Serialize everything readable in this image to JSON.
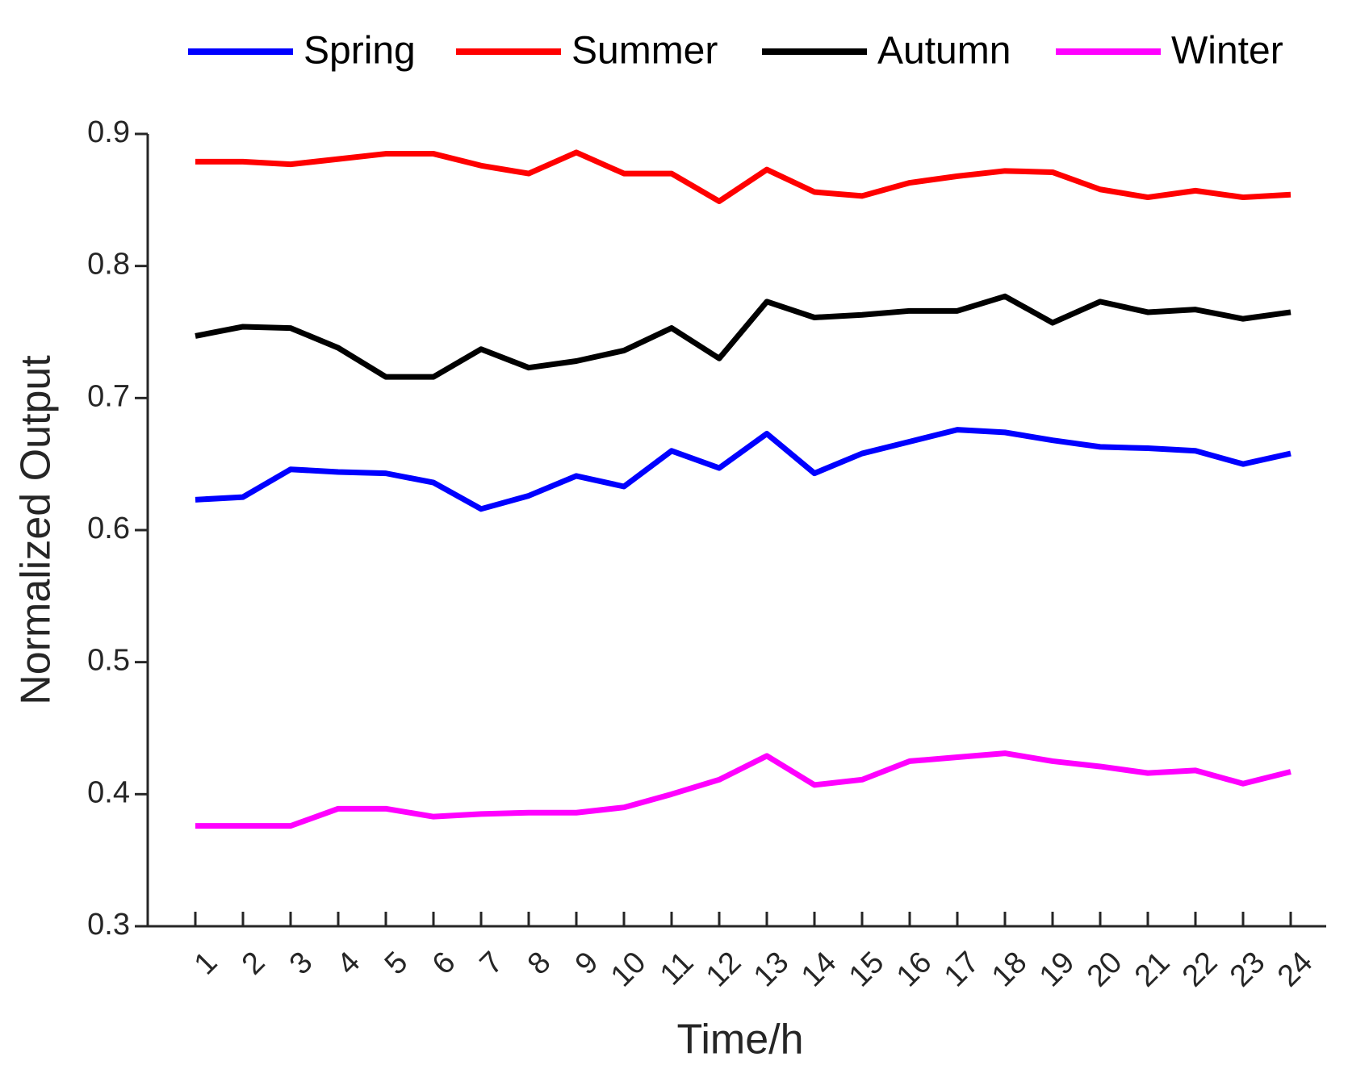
{
  "chart_data": {
    "type": "line",
    "x_label": "Time/h",
    "y_label": "Normalized Output",
    "categories": [
      "1",
      "2",
      "3",
      "4",
      "5",
      "6",
      "7",
      "8",
      "9",
      "10",
      "11",
      "12",
      "13",
      "14",
      "15",
      "16",
      "17",
      "18",
      "19",
      "20",
      "21",
      "22",
      "23",
      "24"
    ],
    "series": [
      {
        "name": "Spring",
        "color": "#0000ff",
        "values": [
          0.623,
          0.625,
          0.646,
          0.644,
          0.643,
          0.636,
          0.616,
          0.626,
          0.641,
          0.633,
          0.66,
          0.647,
          0.673,
          0.643,
          0.658,
          0.667,
          0.676,
          0.674,
          0.668,
          0.663,
          0.662,
          0.66,
          0.65,
          0.658
        ]
      },
      {
        "name": "Summer",
        "color": "#ff0000",
        "values": [
          0.879,
          0.879,
          0.877,
          0.881,
          0.885,
          0.885,
          0.876,
          0.87,
          0.886,
          0.87,
          0.87,
          0.849,
          0.873,
          0.856,
          0.853,
          0.863,
          0.868,
          0.872,
          0.871,
          0.858,
          0.852,
          0.857,
          0.852,
          0.854
        ]
      },
      {
        "name": "Autumn",
        "color": "#000000",
        "values": [
          0.747,
          0.754,
          0.753,
          0.738,
          0.716,
          0.716,
          0.737,
          0.723,
          0.728,
          0.736,
          0.753,
          0.73,
          0.773,
          0.761,
          0.763,
          0.766,
          0.766,
          0.777,
          0.757,
          0.773,
          0.765,
          0.767,
          0.76,
          0.765
        ]
      },
      {
        "name": "Winter",
        "color": "#ff00ff",
        "values": [
          0.376,
          0.376,
          0.376,
          0.389,
          0.389,
          0.383,
          0.385,
          0.386,
          0.386,
          0.39,
          0.4,
          0.411,
          0.429,
          0.407,
          0.411,
          0.425,
          0.428,
          0.431,
          0.425,
          0.421,
          0.416,
          0.418,
          0.408,
          0.417
        ]
      }
    ],
    "ylim": [
      0.3,
      0.9
    ],
    "yticks": [
      0.3,
      0.4,
      0.5,
      0.6,
      0.7,
      0.8,
      0.9
    ]
  }
}
